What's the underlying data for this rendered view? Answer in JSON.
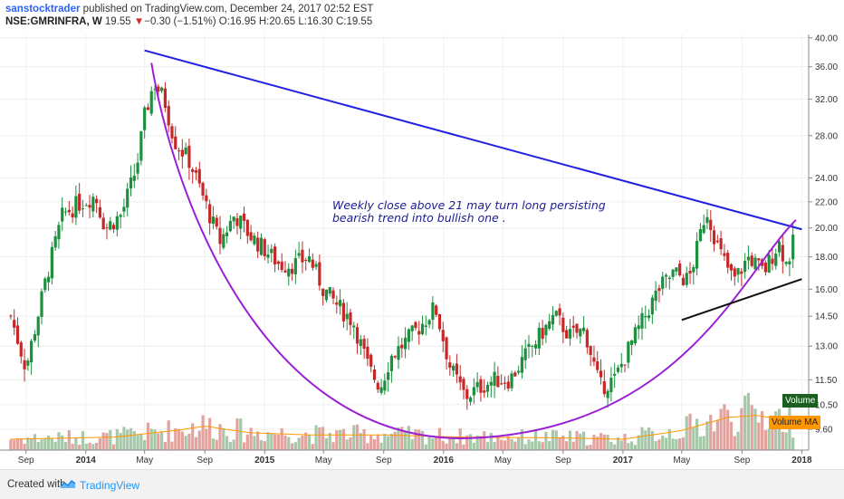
{
  "header": {
    "user": "sanstocktrader",
    "published": "published on TradingView.com, December 24, 2017 02:52 EST",
    "symbol": "NSE:GMRINFRA, W",
    "last": "19.55",
    "arrow": "▼",
    "change": "−0.30 (−1.51%)",
    "open": "O:16.95",
    "high": "H:20.65",
    "low": "L:16.30",
    "close": "C:19.55"
  },
  "annotation": {
    "line1": "Weekly close above 21 may turn long persisting",
    "line2": "bearish trend into bullish one ."
  },
  "labels": {
    "volume": "Volume",
    "volume_ma": "Volume MA"
  },
  "footer": {
    "created_with": "Created with",
    "brand": "TradingView"
  },
  "colors": {
    "up": "#1e8f3f",
    "down": "#c62828",
    "trendline": "#2020e0",
    "arc": "#9b1fd6",
    "support": "#111111",
    "volume_up": "#a5c8a8",
    "volume_down": "#e2a29e",
    "volume_ma": "#ff9800"
  },
  "chart_data": {
    "type": "candlestick",
    "title": "NSE:GMRINFRA, W",
    "y_scale": "log",
    "ylim": [
      8.9,
      40.5
    ],
    "y_ticks": [
      "40.00",
      "36.00",
      "32.00",
      "28.00",
      "24.00",
      "22.00",
      "20.00",
      "18.00",
      "16.00",
      "14.50",
      "13.00",
      "11.50",
      "10.50",
      "9.60"
    ],
    "x_ticks": [
      {
        "label": "Sep",
        "bold": false
      },
      {
        "label": "2014",
        "bold": true
      },
      {
        "label": "May",
        "bold": false
      },
      {
        "label": "Sep",
        "bold": false
      },
      {
        "label": "2015",
        "bold": true
      },
      {
        "label": "May",
        "bold": false
      },
      {
        "label": "Sep",
        "bold": false
      },
      {
        "label": "2016",
        "bold": true
      },
      {
        "label": "May",
        "bold": false
      },
      {
        "label": "Sep",
        "bold": false
      },
      {
        "label": "2017",
        "bold": true
      },
      {
        "label": "May",
        "bold": false
      },
      {
        "label": "Sep",
        "bold": false
      },
      {
        "label": "2018",
        "bold": true
      }
    ],
    "weekly_close_path": [
      [
        "2013-08-01",
        14.5
      ],
      [
        "2013-09-01",
        12.0
      ],
      [
        "2013-10-15",
        17.0
      ],
      [
        "2013-11-15",
        21.0
      ],
      [
        "2013-12-15",
        21.8
      ],
      [
        "2014-01-20",
        22.5
      ],
      [
        "2014-02-10",
        20.0
      ],
      [
        "2014-03-15",
        21.0
      ],
      [
        "2014-04-15",
        25.0
      ],
      [
        "2014-05-01",
        30.0
      ],
      [
        "2014-05-20",
        34.0
      ],
      [
        "2014-06-10",
        32.0
      ],
      [
        "2014-07-01",
        27.5
      ],
      [
        "2014-08-01",
        25.5
      ],
      [
        "2014-09-01",
        22.0
      ],
      [
        "2014-10-01",
        19.0
      ],
      [
        "2014-11-01",
        21.0
      ],
      [
        "2014-12-01",
        19.5
      ],
      [
        "2015-01-01",
        18.5
      ],
      [
        "2015-02-01",
        17.5
      ],
      [
        "2015-03-01",
        17.5
      ],
      [
        "2015-04-01",
        18.0
      ],
      [
        "2015-05-01",
        16.0
      ],
      [
        "2015-06-01",
        15.0
      ],
      [
        "2015-07-01",
        14.2
      ],
      [
        "2015-08-01",
        12.0
      ],
      [
        "2015-08-25",
        11.2
      ],
      [
        "2015-09-15",
        12.5
      ],
      [
        "2015-10-15",
        13.2
      ],
      [
        "2015-11-15",
        14.0
      ],
      [
        "2015-12-15",
        15.0
      ],
      [
        "2016-01-15",
        12.0
      ],
      [
        "2016-02-15",
        10.8
      ],
      [
        "2016-03-15",
        11.2
      ],
      [
        "2016-04-15",
        11.5
      ],
      [
        "2016-05-15",
        11.5
      ],
      [
        "2016-06-15",
        12.5
      ],
      [
        "2016-07-15",
        13.5
      ],
      [
        "2016-08-15",
        14.5
      ],
      [
        "2016-09-15",
        13.5
      ],
      [
        "2016-10-15",
        13.8
      ],
      [
        "2016-11-15",
        11.2
      ],
      [
        "2016-12-15",
        11.5
      ],
      [
        "2017-01-15",
        13.0
      ],
      [
        "2017-02-15",
        14.5
      ],
      [
        "2017-03-15",
        16.0
      ],
      [
        "2017-04-15",
        17.0
      ],
      [
        "2017-05-15",
        16.5
      ],
      [
        "2017-06-01",
        18.5
      ],
      [
        "2017-06-20",
        21.5
      ],
      [
        "2017-07-15",
        18.5
      ],
      [
        "2017-08-15",
        16.5
      ],
      [
        "2017-09-15",
        18.0
      ],
      [
        "2017-10-15",
        17.0
      ],
      [
        "2017-11-15",
        19.0
      ],
      [
        "2017-12-01",
        17.5
      ],
      [
        "2017-12-20",
        19.55
      ]
    ],
    "volume_ma_path": [
      [
        "2013-08-01",
        0.25
      ],
      [
        "2014-03-01",
        0.3
      ],
      [
        "2014-07-01",
        0.45
      ],
      [
        "2014-09-01",
        0.55
      ],
      [
        "2014-12-01",
        0.4
      ],
      [
        "2015-04-01",
        0.35
      ],
      [
        "2015-09-01",
        0.35
      ],
      [
        "2016-02-01",
        0.3
      ],
      [
        "2016-09-01",
        0.28
      ],
      [
        "2017-01-01",
        0.25
      ],
      [
        "2017-05-01",
        0.45
      ],
      [
        "2017-08-01",
        0.75
      ],
      [
        "2017-10-01",
        0.8
      ],
      [
        "2017-12-20",
        0.65
      ]
    ],
    "drawings": [
      {
        "type": "trendline",
        "name": "descending-resistance",
        "points": [
          [
            "2014-05-01",
            38.2
          ],
          [
            "2018-01-01",
            19.9
          ]
        ]
      },
      {
        "type": "arc",
        "name": "rounding-bottom",
        "points": [
          [
            "2014-05-15",
            36.5
          ],
          [
            "2016-03-01",
            9.3
          ],
          [
            "2017-12-20",
            20.6
          ]
        ]
      },
      {
        "type": "trendline",
        "name": "rising-support",
        "points": [
          [
            "2017-05-01",
            14.3
          ],
          [
            "2018-01-01",
            16.6
          ]
        ]
      }
    ]
  }
}
